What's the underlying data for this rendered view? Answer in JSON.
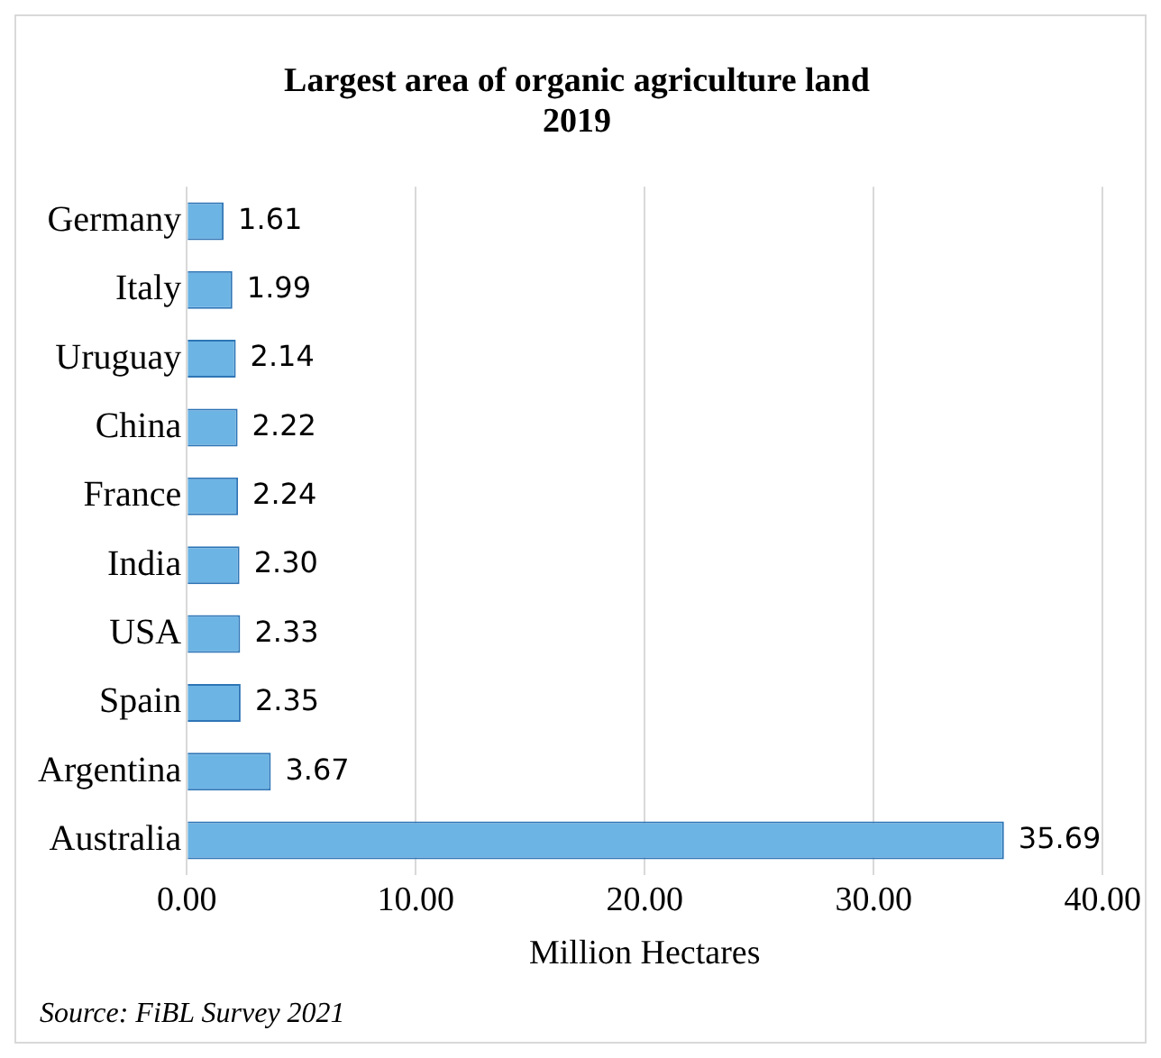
{
  "chart_data": {
    "type": "bar",
    "orientation": "horizontal",
    "title": "Largest area of organic agriculture land\n2019",
    "xlabel": "Million Hectares",
    "categories": [
      "Germany",
      "Italy",
      "Uruguay",
      "China",
      "France",
      "India",
      "USA",
      "Spain",
      "Argentina",
      "Australia"
    ],
    "values": [
      1.61,
      1.99,
      2.14,
      2.22,
      2.24,
      2.3,
      2.33,
      2.35,
      3.67,
      35.69
    ],
    "value_labels": [
      "1.61",
      "1.99",
      "2.14",
      "2.22",
      "2.24",
      "2.30",
      "2.33",
      "2.35",
      "3.67",
      "35.69"
    ],
    "color": "#6cb4e4",
    "xlim": [
      0,
      40
    ],
    "xticks": [
      {
        "value": 0,
        "label": "0.00"
      },
      {
        "value": 10,
        "label": "10.00"
      },
      {
        "value": 20,
        "label": "20.00"
      },
      {
        "value": 30,
        "label": "30.00"
      },
      {
        "value": 40,
        "label": "40.00"
      }
    ],
    "grid": "x",
    "legend": false,
    "annotations": [
      "Source: FiBL Survey 2021"
    ]
  }
}
